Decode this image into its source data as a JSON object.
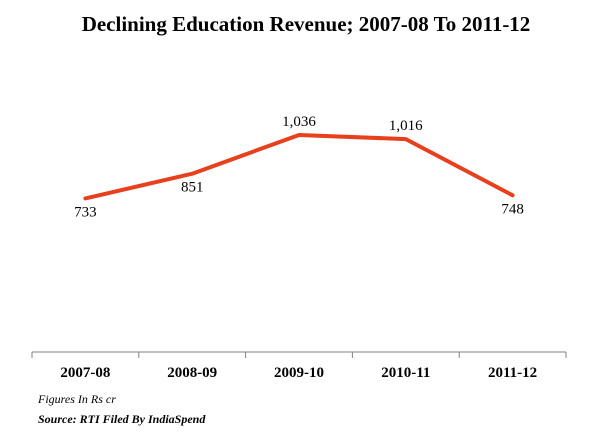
{
  "chart_data": {
    "type": "line",
    "title": "Declining Education Revenue; 2007-08 To 2011-12",
    "categories": [
      "2007-08",
      "2008-09",
      "2009-10",
      "2010-11",
      "2011-12"
    ],
    "series": [
      {
        "values": [
          733,
          851,
          1036,
          1016,
          748
        ],
        "labels": [
          "733",
          "851",
          "1,036",
          "1,016",
          "748"
        ],
        "color": "#e8401c"
      }
    ],
    "ylim": [
      0,
      2000
    ],
    "grid": false,
    "legend": "none",
    "xlabel": "",
    "ylabel": ""
  },
  "notes": {
    "units": "Figures In Rs cr",
    "source": "Source: RTI Filed By IndiaSpend"
  },
  "colors": {
    "line": "#e8401c",
    "axis": "#808080",
    "text": "#000000"
  }
}
